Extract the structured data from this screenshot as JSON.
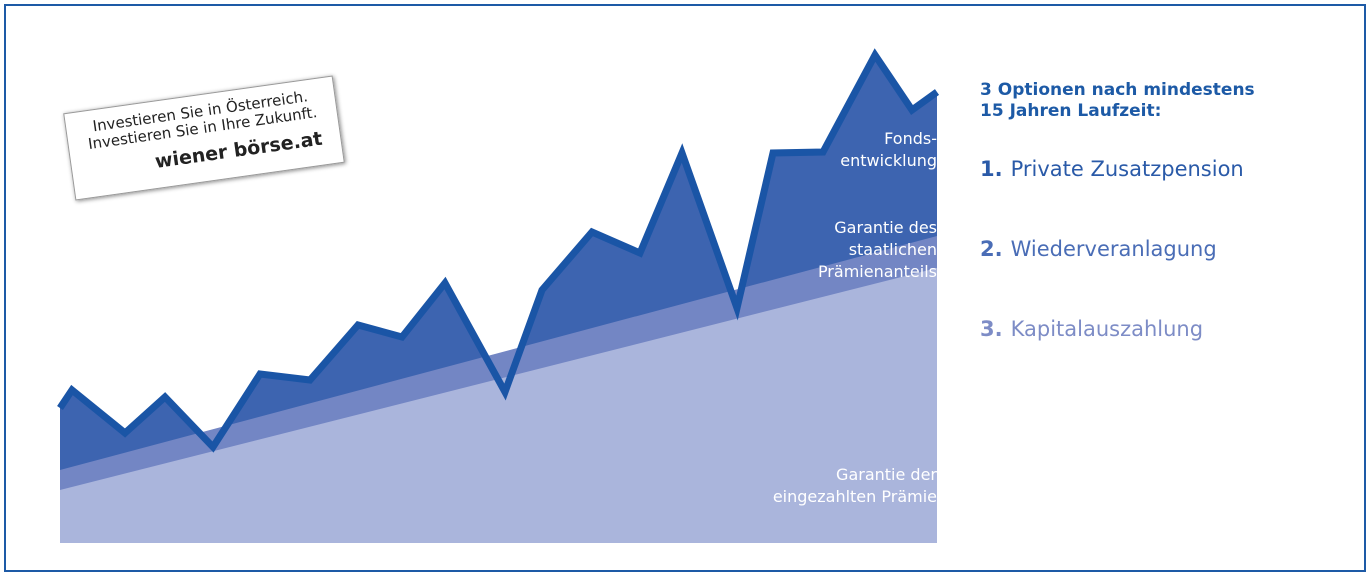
{
  "logo": {
    "lines": [
      "Investieren Sie in Österreich.",
      "Investieren Sie in Ihre Zukunft."
    ],
    "brand": "wiener börse.at"
  },
  "chart_labels": [
    [
      "Fonds-",
      "entwicklung"
    ],
    [
      "Garantie des",
      "staatlichen",
      "Prämienanteils"
    ],
    [
      "Garantie der",
      "eingezahlten Prämie"
    ]
  ],
  "options": {
    "title": [
      "3 Optionen nach mindestens",
      "15 Jahren Laufzeit:"
    ],
    "items": [
      {
        "number": "1.",
        "text": "Private Zusatzpension"
      },
      {
        "number": "2.",
        "text": "Wiederveranlagung"
      },
      {
        "number": "3.",
        "text": "Kapitalauszahlung"
      }
    ]
  }
}
